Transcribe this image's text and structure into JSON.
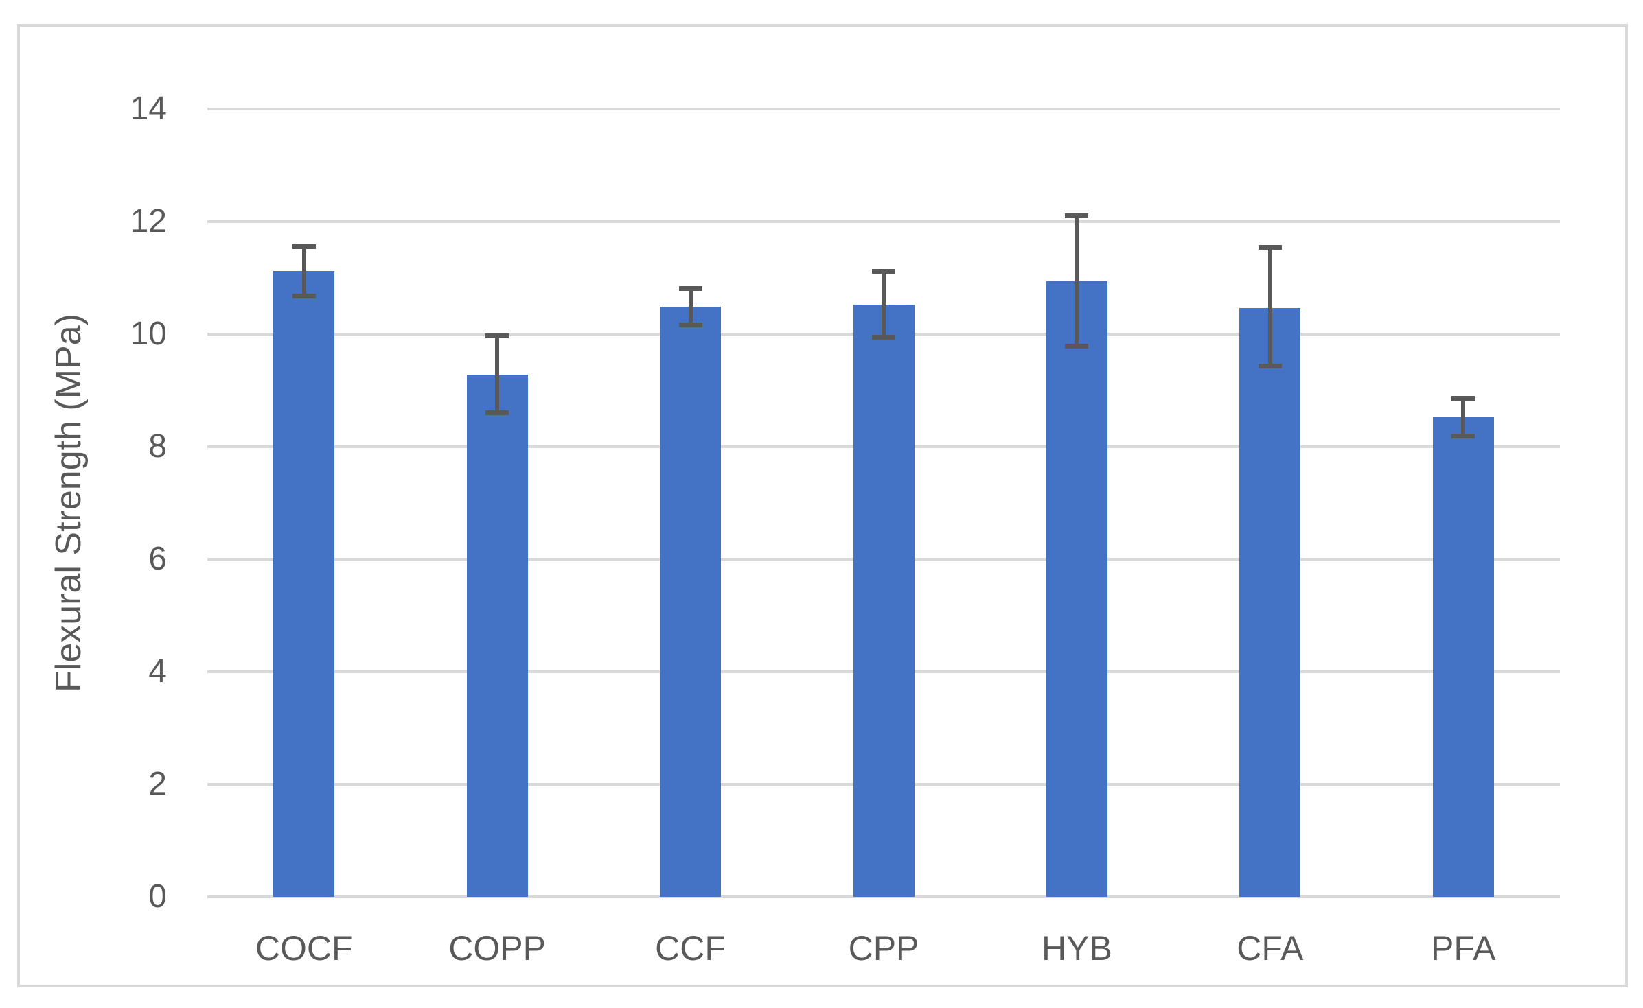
{
  "chart_data": {
    "type": "bar",
    "title": "",
    "xlabel": "",
    "ylabel": "Flexural Strength (MPa)",
    "ylim": [
      0,
      14
    ],
    "yticks": [
      0,
      2,
      4,
      6,
      8,
      10,
      12,
      14
    ],
    "grid": "horizontal-light-gray",
    "legend_position": "none",
    "categories": [
      "COCF",
      "COPP",
      "CCF",
      "CPP",
      "HYB",
      "CFA",
      "PFA"
    ],
    "series": [
      {
        "name": "Flexural Strength",
        "values": [
          11.12,
          9.28,
          10.49,
          10.52,
          10.94,
          10.46,
          8.52
        ],
        "error_upper": [
          11.56,
          9.98,
          10.82,
          11.12,
          12.11,
          11.55,
          8.87
        ],
        "error_lower": [
          10.68,
          8.61,
          10.17,
          9.95,
          9.79,
          9.44,
          8.2
        ]
      }
    ],
    "colors": {
      "bar_fill": "#4472C4",
      "error_bar": "#595959",
      "gridline": "#D9D9D9",
      "frame_border": "#D9D9D9",
      "text": "#595959",
      "background": "#FFFFFF"
    }
  }
}
